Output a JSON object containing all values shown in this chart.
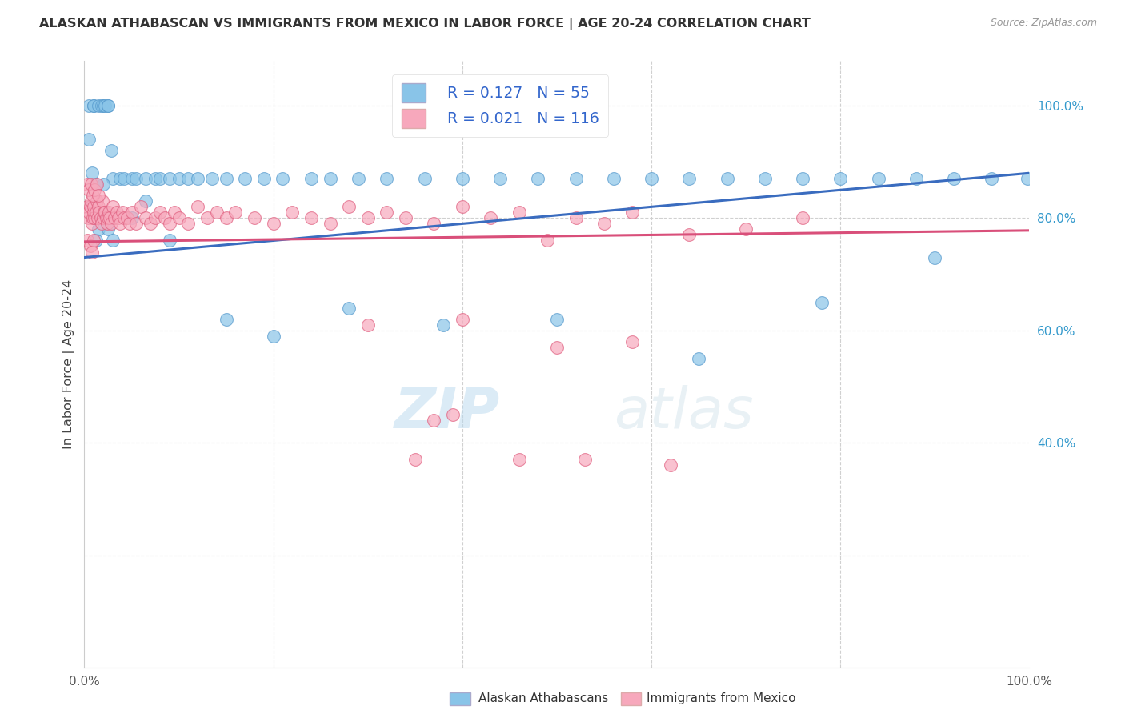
{
  "title": "ALASKAN ATHABASCAN VS IMMIGRANTS FROM MEXICO IN LABOR FORCE | AGE 20-24 CORRELATION CHART",
  "source": "Source: ZipAtlas.com",
  "ylabel": "In Labor Force | Age 20-24",
  "xlim": [
    0.0,
    1.0
  ],
  "ylim": [
    0.0,
    1.08
  ],
  "legend_label1": "Alaskan Athabascans",
  "legend_label2": "Immigrants from Mexico",
  "R1": 0.127,
  "N1": 55,
  "R2": 0.021,
  "N2": 116,
  "color1": "#89c4e8",
  "color2": "#f7a8bc",
  "trendline1_color": "#3a6cbf",
  "trendline2_color": "#d94f7a",
  "background_color": "#ffffff",
  "grid_color": "#d0d0d0",
  "watermark_zip": "ZIP",
  "watermark_atlas": "atlas",
  "trendline1_x": [
    0.0,
    1.0
  ],
  "trendline1_y": [
    0.73,
    0.88
  ],
  "trendline2_x": [
    0.0,
    1.0
  ],
  "trendline2_y": [
    0.758,
    0.778
  ],
  "blue_x": [
    0.005,
    0.01,
    0.01,
    0.015,
    0.018,
    0.02,
    0.022,
    0.025,
    0.025,
    0.028,
    0.03,
    0.038,
    0.042,
    0.05,
    0.055,
    0.065,
    0.075,
    0.08,
    0.09,
    0.1,
    0.11,
    0.12,
    0.135,
    0.15,
    0.17,
    0.19,
    0.21,
    0.24,
    0.26,
    0.29,
    0.32,
    0.36,
    0.4,
    0.44,
    0.48,
    0.52,
    0.56,
    0.6,
    0.64,
    0.68,
    0.72,
    0.76,
    0.8,
    0.84,
    0.88,
    0.92,
    0.96,
    0.998,
    0.005,
    0.008,
    0.012,
    0.015,
    0.02,
    0.025,
    0.03
  ],
  "blue_y": [
    1.0,
    1.0,
    1.0,
    1.0,
    1.0,
    1.0,
    1.0,
    1.0,
    1.0,
    0.92,
    0.87,
    0.87,
    0.87,
    0.87,
    0.87,
    0.87,
    0.87,
    0.87,
    0.87,
    0.87,
    0.87,
    0.87,
    0.87,
    0.87,
    0.87,
    0.87,
    0.87,
    0.87,
    0.87,
    0.87,
    0.87,
    0.87,
    0.87,
    0.87,
    0.87,
    0.87,
    0.87,
    0.87,
    0.87,
    0.87,
    0.87,
    0.87,
    0.87,
    0.87,
    0.87,
    0.87,
    0.87,
    0.87,
    0.94,
    0.82,
    0.76,
    0.78,
    0.86,
    0.78,
    0.76
  ],
  "blue_x2": [
    0.008,
    0.012,
    0.05,
    0.065,
    0.09,
    0.15,
    0.2,
    0.28,
    0.38,
    0.5,
    0.65,
    0.78,
    0.9
  ],
  "blue_y2": [
    0.88,
    0.86,
    0.8,
    0.83,
    0.76,
    0.62,
    0.59,
    0.64,
    0.61,
    0.62,
    0.55,
    0.65,
    0.73
  ],
  "pink_x": [
    0.003,
    0.004,
    0.005,
    0.006,
    0.007,
    0.008,
    0.009,
    0.01,
    0.01,
    0.011,
    0.012,
    0.013,
    0.014,
    0.015,
    0.016,
    0.017,
    0.018,
    0.019,
    0.02,
    0.021,
    0.022,
    0.023,
    0.024,
    0.025,
    0.026,
    0.027,
    0.028,
    0.03,
    0.032,
    0.034,
    0.036,
    0.038,
    0.04,
    0.042,
    0.045,
    0.048,
    0.05,
    0.055,
    0.06,
    0.065,
    0.07,
    0.075,
    0.08,
    0.085,
    0.09,
    0.095,
    0.1,
    0.11,
    0.12,
    0.13,
    0.14,
    0.15,
    0.16,
    0.18,
    0.2,
    0.22,
    0.24,
    0.26,
    0.28,
    0.3,
    0.32,
    0.34,
    0.37,
    0.4,
    0.43,
    0.46,
    0.49,
    0.52,
    0.55,
    0.58,
    0.64,
    0.7,
    0.76,
    0.3,
    0.4,
    0.5,
    0.58
  ],
  "pink_y": [
    0.82,
    0.8,
    0.81,
    0.82,
    0.83,
    0.79,
    0.8,
    0.81,
    0.82,
    0.8,
    0.81,
    0.83,
    0.8,
    0.82,
    0.81,
    0.8,
    0.79,
    0.83,
    0.8,
    0.81,
    0.81,
    0.8,
    0.79,
    0.8,
    0.81,
    0.8,
    0.79,
    0.82,
    0.8,
    0.81,
    0.8,
    0.79,
    0.81,
    0.8,
    0.8,
    0.79,
    0.81,
    0.79,
    0.82,
    0.8,
    0.79,
    0.8,
    0.81,
    0.8,
    0.79,
    0.81,
    0.8,
    0.79,
    0.82,
    0.8,
    0.81,
    0.8,
    0.81,
    0.8,
    0.79,
    0.81,
    0.8,
    0.79,
    0.82,
    0.8,
    0.81,
    0.8,
    0.79,
    0.82,
    0.8,
    0.81,
    0.76,
    0.8,
    0.79,
    0.81,
    0.77,
    0.78,
    0.8,
    0.61,
    0.62,
    0.57,
    0.58
  ],
  "pink_x2": [
    0.003,
    0.005,
    0.007,
    0.009,
    0.011,
    0.013,
    0.015,
    0.003,
    0.006,
    0.008,
    0.01,
    0.35,
    0.46,
    0.53,
    0.62,
    0.37,
    0.39
  ],
  "pink_y2": [
    0.86,
    0.85,
    0.86,
    0.84,
    0.85,
    0.86,
    0.84,
    0.76,
    0.75,
    0.74,
    0.76,
    0.37,
    0.37,
    0.37,
    0.36,
    0.44,
    0.45
  ]
}
